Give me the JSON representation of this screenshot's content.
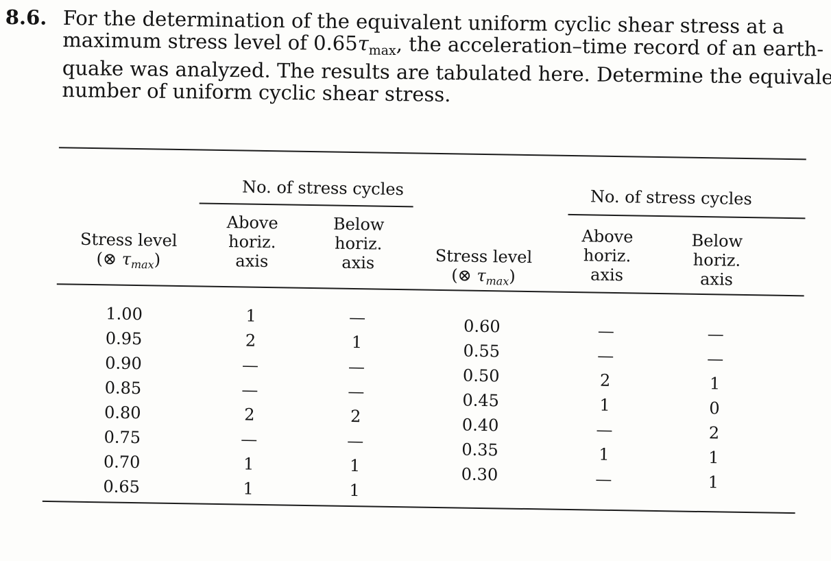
{
  "problem": {
    "number": "8.6.",
    "lines": [
      "For the determination of the equivalent uniform cyclic shear stress at a",
      "quake was analyzed. The results are tabulated here. Determine the equivalent",
      "number of uniform cyclic shear stress."
    ],
    "line2_parts": {
      "before": "maximum stress level of 0.65",
      "tau": "τ",
      "sub": "max",
      "after": ", the acceleration–time record of an earth-"
    }
  },
  "table": {
    "group_header": "No. of stress cycles",
    "col_stress": [
      "Stress level",
      "(⊗ ",
      "τ",
      "max",
      ")"
    ],
    "col_above": [
      "Above",
      "horiz.",
      "axis"
    ],
    "col_below": [
      "Below",
      "horiz.",
      "axis"
    ],
    "left_rows": [
      {
        "level": "1.00",
        "above": "1",
        "below": "—"
      },
      {
        "level": "0.95",
        "above": "2",
        "below": "1"
      },
      {
        "level": "0.90",
        "above": "—",
        "below": "—"
      },
      {
        "level": "0.85",
        "above": "—",
        "below": "—"
      },
      {
        "level": "0.80",
        "above": "2",
        "below": "2"
      },
      {
        "level": "0.75",
        "above": "—",
        "below": "—"
      },
      {
        "level": "0.70",
        "above": "1",
        "below": "1"
      },
      {
        "level": "0.65",
        "above": "1",
        "below": "1"
      }
    ],
    "right_rows": [
      {
        "level": "0.60",
        "above": "—",
        "below": "—"
      },
      {
        "level": "0.55",
        "above": "—",
        "below": "—"
      },
      {
        "level": "0.50",
        "above": "2",
        "below": "1"
      },
      {
        "level": "0.45",
        "above": "1",
        "below": "0"
      },
      {
        "level": "0.40",
        "above": "—",
        "below": "2"
      },
      {
        "level": "0.35",
        "above": "1",
        "below": "1"
      },
      {
        "level": "0.30",
        "above": "—",
        "below": "1"
      }
    ]
  }
}
